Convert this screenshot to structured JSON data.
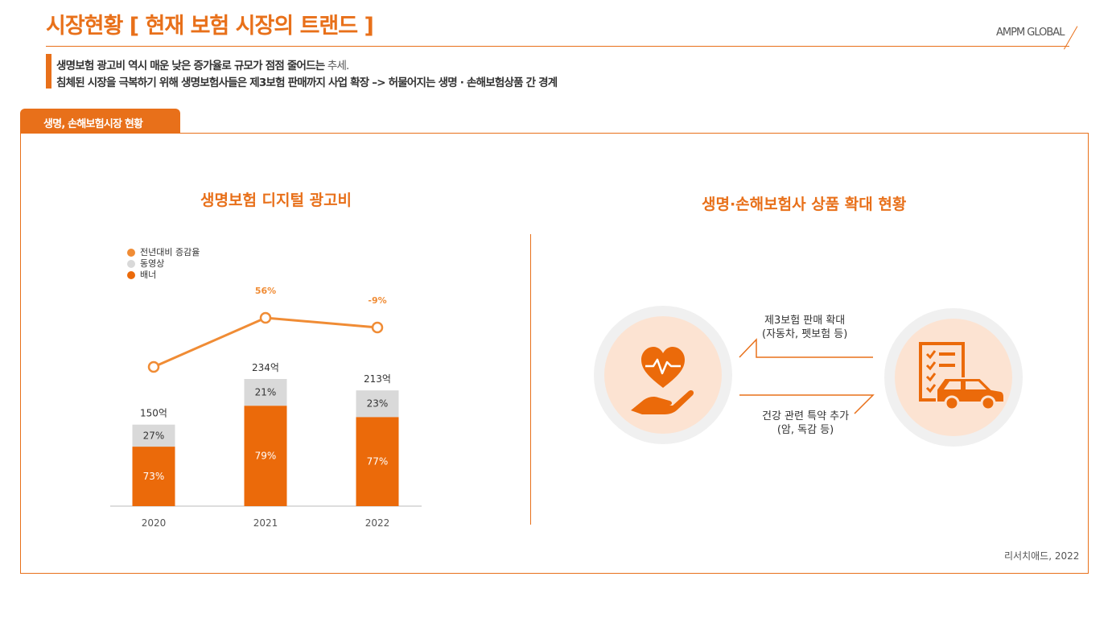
{
  "header": {
    "title": "시장현황 [ 현재 보험 시장의 트랜드 ]",
    "brand": "AMPM GLOBAL",
    "subtitle_line1_bold": "생명보험 광고비 역시 매운 낮은 증가율로 규모가 점점 줄어드는",
    "subtitle_line1_light": " 추세.",
    "subtitle_line2": "침체된 시장을 극복하기 위해 생명보험사들은 제3보험 판매까지 사업 확장 –> 허물어지는 생명 · 손해보험상품 간 경계"
  },
  "tab": {
    "label": "생명, 손해보험시장 현황"
  },
  "left_section": {
    "title": "생명보험 디지털 광고비"
  },
  "right_section": {
    "title": "생명·손해보험사 상품 확대 현황",
    "top_label_line1": "제3보험 판매 확대",
    "top_label_line2": "(자동차, 펫보험 등)",
    "bottom_label_line1": "건강 관련 특약 추가",
    "bottom_label_line2": "(암, 독감 등)",
    "left_icon": "heart-in-hand-icon",
    "right_icon": "checklist-car-icon"
  },
  "source": "리서치애드, 2022",
  "colors": {
    "accent": "#e8701a",
    "banner": "#eb6a0a",
    "video": "#d9d9d9",
    "growth": "#f08c35",
    "circle_outer": "#f0f0f0",
    "circle_inner": "#fce3d2"
  },
  "chart_data": {
    "type": "bar",
    "title": "생명보험 디지털 광고비",
    "categories": [
      "2020",
      "2021",
      "2022"
    ],
    "totals": [
      150,
      234,
      213
    ],
    "total_labels": [
      "150억",
      "234억",
      "213억"
    ],
    "legend": [
      "전년대비 증감율",
      "동영상",
      "배너"
    ],
    "series": [
      {
        "name": "배너",
        "values": [
          73,
          79,
          77
        ],
        "labels": [
          "73%",
          "79%",
          "77%"
        ]
      },
      {
        "name": "동영상",
        "values": [
          27,
          21,
          23
        ],
        "labels": [
          "27%",
          "21%",
          "23%"
        ]
      }
    ],
    "growth_line": {
      "name": "전년대비 증감율",
      "labels": [
        "",
        "56%",
        "-9%"
      ]
    },
    "ylim": [
      0,
      250
    ]
  }
}
